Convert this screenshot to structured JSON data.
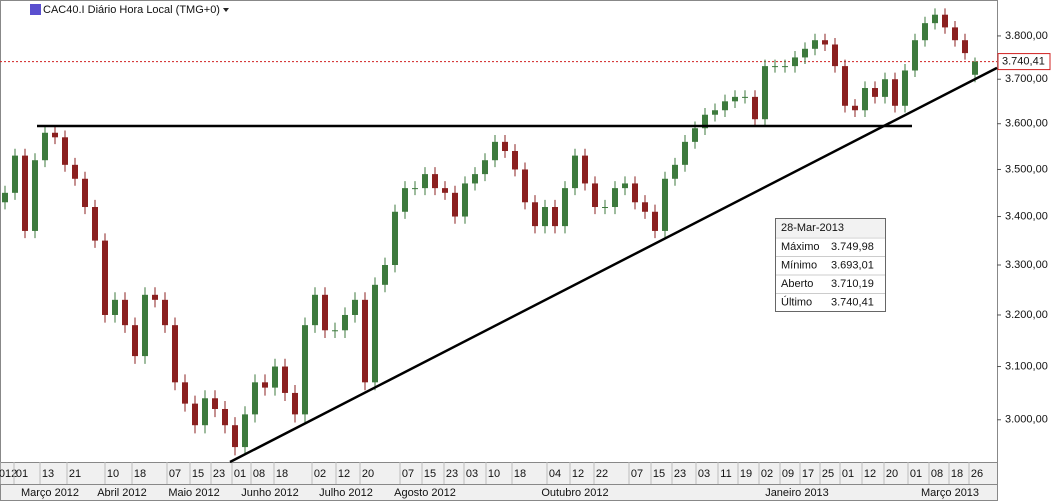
{
  "chart_data": {
    "type": "candlestick",
    "title": "CAC40.I Diário Hora Local (TMG+0)",
    "log_scale": true,
    "xlim": [
      -0.5,
      99.2
    ],
    "ylim": [
      2923,
      3885
    ],
    "yticks": [
      {
        "value": 3000,
        "label": "3.000,00"
      },
      {
        "value": 3100,
        "label": "3.100,00"
      },
      {
        "value": 3200,
        "label": "3.200,00"
      },
      {
        "value": 3300,
        "label": "3.300,00"
      },
      {
        "value": 3400,
        "label": "3.400,00"
      },
      {
        "value": 3500,
        "label": "3.500,00"
      },
      {
        "value": 3600,
        "label": "3.600,00"
      },
      {
        "value": 3700,
        "label": "3.700,00"
      },
      {
        "value": 3800,
        "label": "3.800,00"
      }
    ],
    "xticks": [
      {
        "value": 0.3,
        "label": "012"
      },
      {
        "value": 1.7,
        "label": "01"
      },
      {
        "value": 4.3,
        "label": "13"
      },
      {
        "value": 7.0,
        "label": "21"
      },
      {
        "value": 10.8,
        "label": "10"
      },
      {
        "value": 13.5,
        "label": "18"
      },
      {
        "value": 17.0,
        "label": "07"
      },
      {
        "value": 19.3,
        "label": "15"
      },
      {
        "value": 21.4,
        "label": "23"
      },
      {
        "value": 23.5,
        "label": "01"
      },
      {
        "value": 25.4,
        "label": "08"
      },
      {
        "value": 27.7,
        "label": "18"
      },
      {
        "value": 31.5,
        "label": "02"
      },
      {
        "value": 33.9,
        "label": "12"
      },
      {
        "value": 36.3,
        "label": "20"
      },
      {
        "value": 40.3,
        "label": "07"
      },
      {
        "value": 42.5,
        "label": "15"
      },
      {
        "value": 44.7,
        "label": "23"
      },
      {
        "value": 46.7,
        "label": "03"
      },
      {
        "value": 48.9,
        "label": "10"
      },
      {
        "value": 51.5,
        "label": "18"
      },
      {
        "value": 55.0,
        "label": "04"
      },
      {
        "value": 57.3,
        "label": "12"
      },
      {
        "value": 59.7,
        "label": "22"
      },
      {
        "value": 63.2,
        "label": "07"
      },
      {
        "value": 65.4,
        "label": "15"
      },
      {
        "value": 67.5,
        "label": "23"
      },
      {
        "value": 69.9,
        "label": "03"
      },
      {
        "value": 72.1,
        "label": "11"
      },
      {
        "value": 74.1,
        "label": "19"
      },
      {
        "value": 76.2,
        "label": "02"
      },
      {
        "value": 78.3,
        "label": "09"
      },
      {
        "value": 80.3,
        "label": "17"
      },
      {
        "value": 82.3,
        "label": "25"
      },
      {
        "value": 84.3,
        "label": "01"
      },
      {
        "value": 86.5,
        "label": "12"
      },
      {
        "value": 88.7,
        "label": "20"
      },
      {
        "value": 91.1,
        "label": "01"
      },
      {
        "value": 93.2,
        "label": "08"
      },
      {
        "value": 95.2,
        "label": "18"
      },
      {
        "value": 97.2,
        "label": "26"
      }
    ],
    "month_ticks": [
      {
        "value": 4.5,
        "label": "Março 2012"
      },
      {
        "value": 11.7,
        "label": "Abril 2012"
      },
      {
        "value": 18.9,
        "label": "Maio 2012"
      },
      {
        "value": 26.5,
        "label": "Junho 2012"
      },
      {
        "value": 34.1,
        "label": "Julho 2012"
      },
      {
        "value": 42.0,
        "label": "Agosto 2012"
      },
      {
        "value": 57.0,
        "label": "Outubro 2012"
      },
      {
        "value": 79.2,
        "label": "Janeiro 2013"
      },
      {
        "value": 94.5,
        "label": "Março 2013"
      }
    ],
    "up_color": "#3d7a3d",
    "down_color": "#8b2020",
    "open": [
      3430,
      3450,
      3530,
      3370,
      3520,
      3580,
      3570,
      3510,
      3480,
      3420,
      3350,
      3200,
      3230,
      3180,
      3120,
      3240,
      3230,
      3180,
      3070,
      3030,
      2990,
      3040,
      3020,
      2990,
      2950,
      3010,
      3070,
      3060,
      3100,
      3050,
      3010,
      3180,
      3240,
      3170,
      3170,
      3200,
      3230,
      3070,
      3260,
      3300,
      3410,
      3460,
      3460,
      3490,
      3460,
      3450,
      3400,
      3470,
      3490,
      3520,
      3560,
      3540,
      3500,
      3430,
      3380,
      3420,
      3380,
      3460,
      3530,
      3470,
      3420,
      3420,
      3460,
      3470,
      3430,
      3410,
      3370,
      3480,
      3510,
      3560,
      3590,
      3620,
      3630,
      3650,
      3660,
      3660,
      3610,
      3730,
      3730,
      3730,
      3750,
      3770,
      3790,
      3780,
      3730,
      3640,
      3630,
      3680,
      3660,
      3700,
      3640,
      3720,
      3790,
      3830,
      3850,
      3820,
      3790,
      3710.19
    ],
    "high": [
      3465,
      3545,
      3545,
      3535,
      3595,
      3595,
      3585,
      3525,
      3495,
      3435,
      3365,
      3245,
      3245,
      3195,
      3255,
      3255,
      3245,
      3195,
      3085,
      3045,
      3055,
      3055,
      3035,
      3005,
      3025,
      3085,
      3085,
      3115,
      3115,
      3065,
      3195,
      3255,
      3255,
      3185,
      3215,
      3245,
      3245,
      3275,
      3315,
      3425,
      3475,
      3475,
      3505,
      3505,
      3475,
      3465,
      3485,
      3505,
      3535,
      3575,
      3575,
      3555,
      3515,
      3445,
      3435,
      3435,
      3475,
      3545,
      3545,
      3485,
      3435,
      3475,
      3485,
      3485,
      3445,
      3425,
      3495,
      3525,
      3575,
      3605,
      3635,
      3645,
      3665,
      3675,
      3675,
      3675,
      3745,
      3745,
      3745,
      3765,
      3785,
      3805,
      3805,
      3795,
      3745,
      3655,
      3695,
      3695,
      3715,
      3715,
      3735,
      3805,
      3845,
      3865,
      3865,
      3835,
      3805,
      3749.98
    ],
    "low": [
      3415,
      3435,
      3355,
      3355,
      3505,
      3555,
      3495,
      3465,
      3405,
      3335,
      3185,
      3185,
      3165,
      3105,
      3105,
      3215,
      3165,
      3055,
      3015,
      2975,
      2975,
      3005,
      2975,
      2935,
      2935,
      2995,
      3045,
      3045,
      3035,
      2995,
      2995,
      3165,
      3155,
      3155,
      3155,
      3185,
      3055,
      3055,
      3245,
      3285,
      3395,
      3445,
      3445,
      3445,
      3435,
      3385,
      3385,
      3455,
      3475,
      3505,
      3525,
      3485,
      3415,
      3365,
      3365,
      3365,
      3365,
      3445,
      3455,
      3405,
      3405,
      3405,
      3445,
      3415,
      3395,
      3355,
      3355,
      3465,
      3495,
      3545,
      3575,
      3605,
      3615,
      3635,
      3645,
      3595,
      3595,
      3715,
      3715,
      3715,
      3735,
      3755,
      3765,
      3715,
      3625,
      3615,
      3615,
      3645,
      3645,
      3625,
      3625,
      3705,
      3775,
      3815,
      3805,
      3775,
      3745,
      3693.01
    ],
    "close": [
      3450,
      3530,
      3370,
      3520,
      3580,
      3570,
      3510,
      3480,
      3420,
      3350,
      3200,
      3230,
      3180,
      3120,
      3240,
      3230,
      3180,
      3070,
      3030,
      2990,
      3040,
      3020,
      2990,
      2950,
      3010,
      3070,
      3060,
      3100,
      3050,
      3010,
      3180,
      3240,
      3170,
      3170,
      3200,
      3230,
      3070,
      3260,
      3300,
      3410,
      3460,
      3460,
      3490,
      3460,
      3450,
      3400,
      3470,
      3490,
      3520,
      3560,
      3540,
      3500,
      3430,
      3380,
      3420,
      3380,
      3460,
      3530,
      3470,
      3420,
      3420,
      3460,
      3470,
      3430,
      3410,
      3370,
      3480,
      3510,
      3560,
      3590,
      3620,
      3630,
      3650,
      3660,
      3660,
      3610,
      3730,
      3730,
      3730,
      3750,
      3770,
      3790,
      3780,
      3730,
      3640,
      3630,
      3680,
      3660,
      3700,
      3640,
      3720,
      3790,
      3830,
      3850,
      3820,
      3790,
      3760,
      3740.41
    ],
    "last_price": {
      "value": 3740.41,
      "label": "3.740,41",
      "color": "#d02020"
    },
    "support_line": {
      "level": 3595,
      "x_from": 3.2,
      "x_to": 90.7
    },
    "trend_line": {
      "x_from": 22.5,
      "y_from": 2923,
      "x_to": 99.2,
      "y_to": 3726
    },
    "info_box": {
      "date": "28-Mar-2013",
      "rows": [
        [
          "Máximo",
          "3.749,98"
        ],
        [
          "Mínimo",
          "3.693,01"
        ],
        [
          "Aberto",
          "3.710,19"
        ],
        [
          "Último",
          "3.740,41"
        ]
      ]
    }
  }
}
